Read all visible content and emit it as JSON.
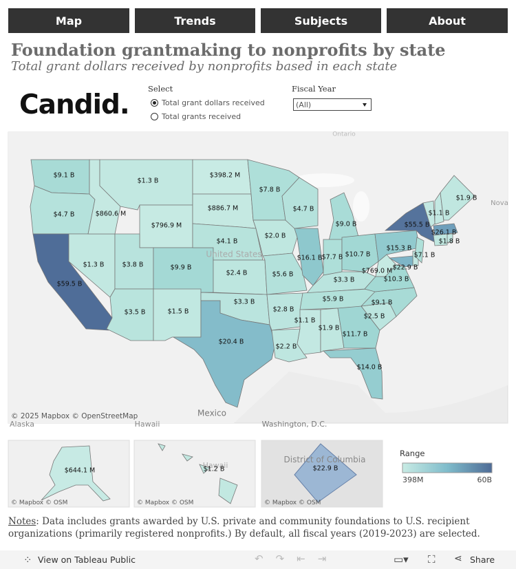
{
  "nav": [
    "Map",
    "Trends",
    "Subjects",
    "About"
  ],
  "header": {
    "title": "Foundation grantmaking to nonprofits by state",
    "subtitle": "Total grant dollars received by nonprofits based in each state"
  },
  "logo": "Candid.",
  "controls": {
    "select_label": "Select",
    "options": [
      "Total grant dollars received",
      "Total grants received"
    ],
    "fiscal_label": "Fiscal Year",
    "fiscal_value": "(All)"
  },
  "map": {
    "places": [
      "United States",
      "Mexico",
      "Washington, D.C.",
      "Alaska",
      "Hawaii",
      "Nova",
      "Ontario"
    ],
    "attribution": "© 2025 Mapbox © OpenStreetMap",
    "states": [
      {
        "label": "$9.1 B",
        "color": "#a8dbd6"
      },
      {
        "label": "$4.7 B",
        "color": "#b5e2dc"
      },
      {
        "label": "$59.5 B",
        "color": "#4f6d98"
      },
      {
        "label": "$1.3 B",
        "color": "#c2e8e1"
      },
      {
        "label": "$860.6 M",
        "color": "#c5e9e2"
      },
      {
        "label": "$1.3 B",
        "color": "#c2e8e1"
      },
      {
        "label": "$796.9 M",
        "color": "#c6eae3"
      },
      {
        "label": "$3.8 B",
        "color": "#b8e3dd"
      },
      {
        "label": "$9.9 B",
        "color": "#a4d9d5"
      },
      {
        "label": "$3.5 B",
        "color": "#b9e4dd"
      },
      {
        "label": "$1.5 B",
        "color": "#c1e8e1"
      },
      {
        "label": "$398.2 M",
        "color": "#c8ebe4"
      },
      {
        "label": "$886.7 M",
        "color": "#c5e9e2"
      },
      {
        "label": "$4.1 B",
        "color": "#b7e3dc"
      },
      {
        "label": "$2.4 B",
        "color": "#bde6df"
      },
      {
        "label": "$3.3 B",
        "color": "#bae4de"
      },
      {
        "label": "$20.4 B",
        "color": "#84bcca"
      },
      {
        "label": "$7.8 B",
        "color": "#aedfd9"
      },
      {
        "label": "$2.0 B",
        "color": "#bfe7e0"
      },
      {
        "label": "$5.6 B",
        "color": "#b3e1db"
      },
      {
        "label": "$2.8 B",
        "color": "#bce5df"
      },
      {
        "label": "$2.2 B",
        "color": "#bee6e0"
      },
      {
        "label": "$4.7 B",
        "color": "#b5e2dc"
      },
      {
        "label": "$16.1 B",
        "color": "#8ec8cd"
      },
      {
        "label": "$9.0 B",
        "color": "#a9dcd7"
      },
      {
        "label": "$7.7 B",
        "color": "#aedfd9"
      },
      {
        "label": "$10.7 B",
        "color": "#a2d8d4"
      },
      {
        "label": "$3.3 B",
        "color": "#bae4de"
      },
      {
        "label": "$5.9 B",
        "color": "#b2e1da"
      },
      {
        "label": "$1.1 B",
        "color": "#c3e8e2"
      },
      {
        "label": "$1.9 B",
        "color": "#c0e7e0"
      },
      {
        "label": "$11.7 B",
        "color": "#9fd6d3"
      },
      {
        "label": "$14.0 B",
        "color": "#95cdd0"
      },
      {
        "label": "$2.5 B",
        "color": "#bce5df"
      },
      {
        "label": "$9.1 B",
        "color": "#a8dbd6"
      },
      {
        "label": "$769.0 M",
        "color": "#c6eae3"
      },
      {
        "label": "$10.3 B",
        "color": "#a3d9d4"
      },
      {
        "label": "$15.3 B",
        "color": "#91cace"
      },
      {
        "label": "$55.5 B",
        "color": "#55739c"
      },
      {
        "label": "$7.1 B",
        "color": "#afe0d9"
      },
      {
        "label": "$22.9 B",
        "color": "#7eb5c7"
      },
      {
        "label": "$26.1 B",
        "color": "#6f9fbb"
      },
      {
        "label": "$1.8 B",
        "color": "#c0e7e0"
      },
      {
        "label": "$1.1 B",
        "color": "#c3e8e2"
      },
      {
        "label": "$1.9 B",
        "color": "#c0e7e0"
      }
    ]
  },
  "insets": [
    {
      "label": "$644.1 M",
      "color": "#c7eae4",
      "attribution": "© Mapbox  © OSM"
    },
    {
      "label": "$1.2 B",
      "color": "#c2e8e1",
      "attribution": "© Mapbox  © OSM",
      "place": "Hawaii"
    },
    {
      "label": "$22.9 B",
      "color": "#9cb7d4",
      "attribution": "© Mapbox  © OSM",
      "place": "District of Columbia"
    }
  ],
  "legend": {
    "title": "Range",
    "min_label": "398M",
    "max_label": "60B",
    "colors": [
      "#c8ebe4",
      "#7fbccb",
      "#4e6b96"
    ]
  },
  "notes": {
    "heading": "Notes",
    "text": ": Data includes grants awarded by U.S. private and community foundations to U.S. recipient organizations (primarily registered nonprofits.) By default, all fiscal years (2019-2023) are selected."
  },
  "toolbar": {
    "view": "View on Tableau Public",
    "share": "Share"
  }
}
